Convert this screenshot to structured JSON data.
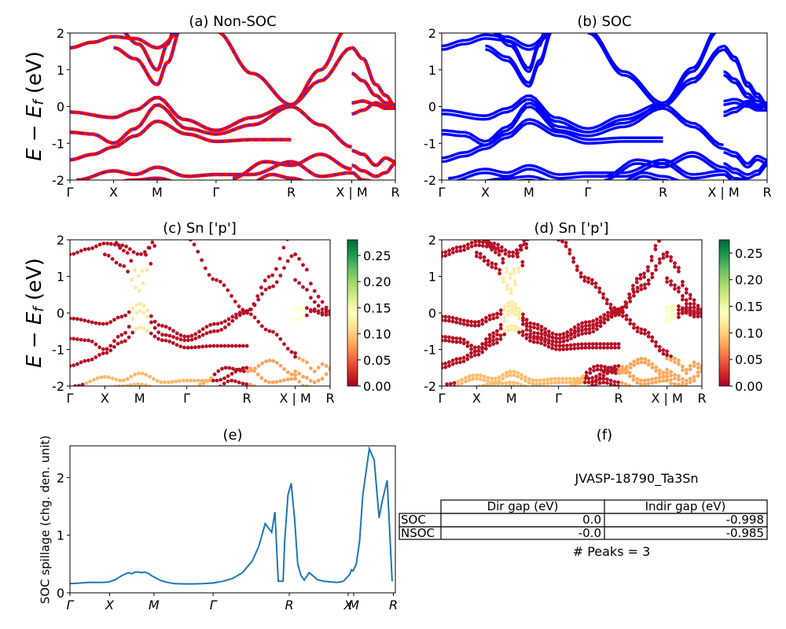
{
  "figure": {
    "ylabel_math": "E − E_f (eV)",
    "ylabel_main": "E − E",
    "ylabel_sub": "f",
    "ylabel_unit": " (eV)"
  },
  "kpath_band": [
    "Γ",
    "X",
    "M",
    "Γ",
    "R",
    "X | M",
    "R"
  ],
  "kpath_spill": [
    "Γ",
    "X",
    "M",
    "Γ",
    "R",
    "X",
    "M",
    "R"
  ],
  "colors": {
    "nonsoc_red": "#ff0000",
    "nonsoc_blue_dash": "#3030ff",
    "soc_blue": "#0000ff",
    "spill_line": "#1f77b4",
    "cmap": [
      "#a50026",
      "#d73027",
      "#f46d43",
      "#fdae61",
      "#fee08b",
      "#ffffbf",
      "#d9ef8b",
      "#a6d96a",
      "#66bd63",
      "#1a9850",
      "#006837"
    ]
  },
  "chart_data": [
    {
      "id": "a",
      "type": "line",
      "title": "(a) Non-SOC",
      "ylim": [
        -2,
        2
      ],
      "yticks": [
        -2,
        -1,
        0,
        1,
        2
      ],
      "xticks": [
        "Γ",
        "X",
        "M",
        "Γ",
        "R",
        "X | M",
        "R"
      ],
      "series_style": "red line with blue dashes"
    },
    {
      "id": "b",
      "type": "line",
      "title": "(b) SOC",
      "ylim": [
        -2,
        2
      ],
      "yticks": [
        -2,
        -1,
        0,
        1,
        2
      ],
      "xticks": [
        "Γ",
        "X",
        "M",
        "Γ",
        "R",
        "X | M",
        "R"
      ],
      "series_style": "blue"
    },
    {
      "id": "c",
      "type": "scatter",
      "title": "(c)  Sn ['p']",
      "ylim": [
        -2,
        2
      ],
      "yticks": [
        -2,
        -1,
        0,
        1,
        2
      ],
      "xticks": [
        "Γ",
        "X",
        "M",
        "Γ",
        "R",
        "X | M",
        "R"
      ],
      "colorbar": {
        "range": [
          0,
          0.28
        ],
        "ticks": [
          "0.00",
          "0.05",
          "0.10",
          "0.15",
          "0.20",
          "0.25"
        ]
      }
    },
    {
      "id": "d",
      "type": "scatter",
      "title": "(d) Sn ['p']",
      "ylim": [
        -2,
        2
      ],
      "yticks": [
        -2,
        -1,
        0,
        1,
        2
      ],
      "xticks": [
        "Γ",
        "X",
        "M",
        "Γ",
        "R",
        "X | M",
        "R"
      ],
      "colorbar": {
        "range": [
          0,
          0.275
        ],
        "ticks": [
          "0.00",
          "0.05",
          "0.10",
          "0.15",
          "0.20",
          "0.25"
        ]
      }
    },
    {
      "id": "e",
      "type": "line",
      "title": "(e)",
      "ylabel": "SOC spillage (chg. den. unit)",
      "ylim": [
        0,
        2.55
      ],
      "yticks": [
        0,
        1,
        2
      ],
      "xticks": [
        "Γ",
        "X",
        "M",
        "Γ",
        "R",
        "X",
        "M",
        "R"
      ],
      "x": [
        0,
        0.02,
        0.04,
        0.06,
        0.08,
        0.1,
        0.12,
        0.14,
        0.16,
        0.18,
        0.19,
        0.2,
        0.21,
        0.22,
        0.23,
        0.24,
        0.25,
        0.26,
        0.27,
        0.28,
        0.3,
        0.32,
        0.35,
        0.38,
        0.41,
        0.44,
        0.47,
        0.5,
        0.53,
        0.56,
        0.58,
        0.6,
        0.62,
        0.63,
        0.64,
        0.655,
        0.66,
        0.67,
        0.68,
        0.69,
        0.7,
        0.71,
        0.72,
        0.735,
        0.75,
        0.76,
        0.78,
        0.8,
        0.82,
        0.84,
        0.86,
        0.865,
        0.87,
        0.88,
        0.89,
        0.9,
        0.91,
        0.92,
        0.935,
        0.95,
        0.96,
        0.975,
        0.99
      ],
      "values": [
        0.16,
        0.165,
        0.175,
        0.18,
        0.18,
        0.18,
        0.19,
        0.23,
        0.3,
        0.35,
        0.33,
        0.36,
        0.36,
        0.35,
        0.36,
        0.34,
        0.3,
        0.27,
        0.24,
        0.21,
        0.18,
        0.16,
        0.155,
        0.155,
        0.16,
        0.17,
        0.2,
        0.25,
        0.35,
        0.55,
        0.8,
        1.2,
        1.05,
        1.4,
        0.2,
        0.2,
        0.9,
        1.7,
        1.9,
        1.3,
        0.5,
        0.3,
        0.22,
        0.35,
        0.28,
        0.23,
        0.2,
        0.19,
        0.18,
        0.2,
        0.32,
        0.4,
        0.38,
        0.5,
        0.9,
        1.7,
        2.1,
        2.5,
        2.3,
        1.3,
        1.6,
        1.95,
        0.2
      ]
    },
    {
      "id": "f",
      "type": "table",
      "title": "(f)",
      "caption": "JVASP-18790_Ta3Sn",
      "columns": [
        "Dir gap (eV)",
        "Indir gap (eV)"
      ],
      "rows": [
        {
          "label": "SOC",
          "values": [
            "0.0",
            "-0.998"
          ]
        },
        {
          "label": "NSOC",
          "values": [
            "-0.0",
            "-0.985"
          ]
        }
      ],
      "footer": "# Peaks = 3"
    }
  ]
}
